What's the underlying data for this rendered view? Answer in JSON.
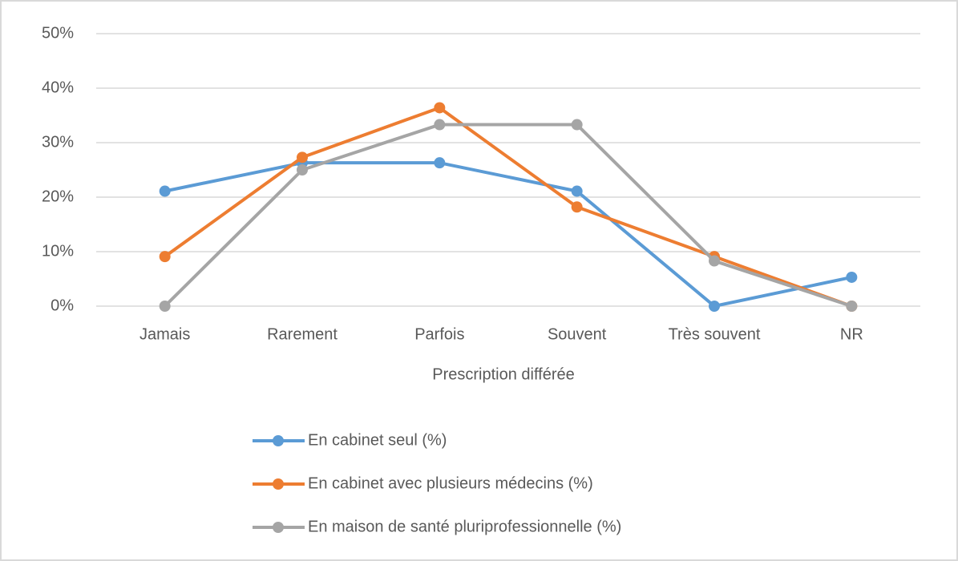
{
  "chart_data": {
    "type": "line",
    "x_label": "Prescription différée",
    "categories": [
      "Jamais",
      "Rarement",
      "Parfois",
      "Souvent",
      "Très souvent",
      "NR"
    ],
    "series": [
      {
        "name": "En cabinet seul (%)",
        "color": "#5b9bd5",
        "values": [
          21.1,
          26.3,
          26.3,
          21.1,
          0,
          5.3
        ]
      },
      {
        "name": "En cabinet avec plusieurs médecins (%)",
        "color": "#ed7d31",
        "values": [
          9.1,
          27.3,
          36.4,
          18.2,
          9.1,
          0
        ]
      },
      {
        "name": "En maison de santé pluriprofessionnelle (%)",
        "color": "#a5a5a5",
        "values": [
          0,
          25,
          33.3,
          33.3,
          8.3,
          0
        ]
      }
    ],
    "ylim": [
      0,
      50
    ],
    "yticks": [
      {
        "value": 0,
        "label": "0%"
      },
      {
        "value": 10,
        "label": "10%"
      },
      {
        "value": 20,
        "label": "20%"
      },
      {
        "value": 30,
        "label": "30%"
      },
      {
        "value": 40,
        "label": "40%"
      },
      {
        "value": 50,
        "label": "50%"
      }
    ],
    "grid": true,
    "legend": "bottom"
  }
}
